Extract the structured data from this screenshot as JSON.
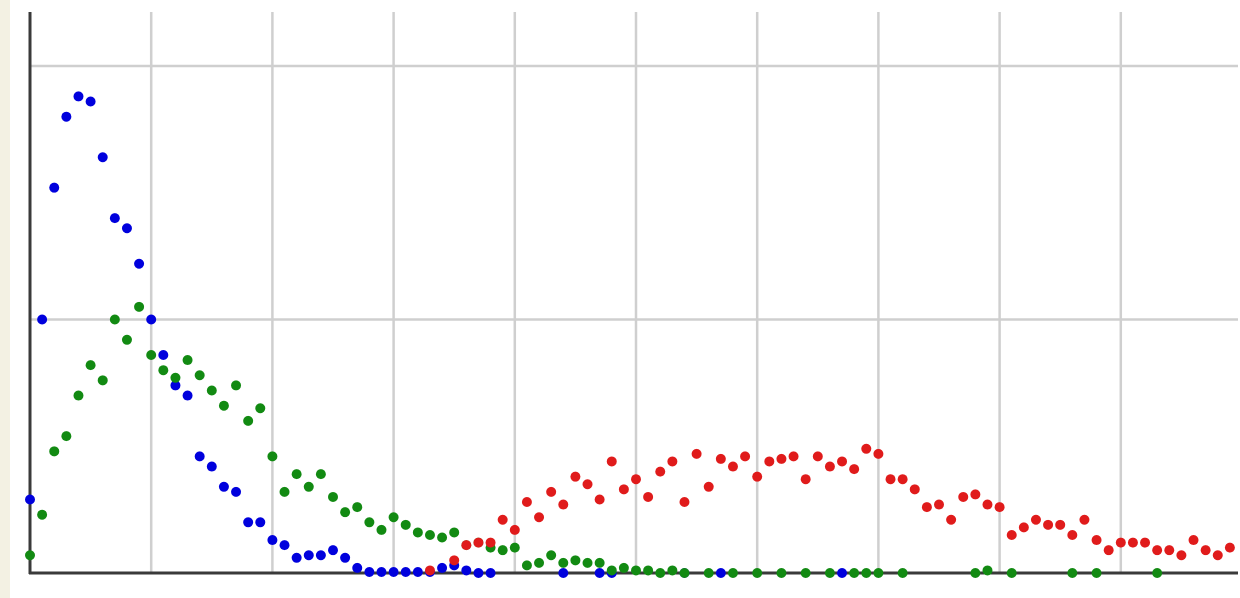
{
  "chart_data": {
    "type": "scatter",
    "title": "",
    "xlabel": "",
    "ylabel": "",
    "xlim": [
      0,
      100
    ],
    "ylim": [
      0,
      10
    ],
    "x_gridlines": [
      10,
      20,
      30,
      40,
      50,
      60,
      70,
      80,
      90
    ],
    "y_gridlines": [
      5,
      10
    ],
    "grid": true,
    "legend": "none",
    "series": [
      {
        "color": "#0000dd",
        "points": [
          [
            0,
            1.45
          ],
          [
            1,
            5.0
          ],
          [
            2,
            7.6
          ],
          [
            3,
            9.0
          ],
          [
            4,
            9.4
          ],
          [
            5,
            9.3
          ],
          [
            6,
            8.2
          ],
          [
            7,
            7.0
          ],
          [
            8,
            6.8
          ],
          [
            9,
            6.1
          ],
          [
            10,
            5.0
          ],
          [
            11,
            4.3
          ],
          [
            12,
            3.7
          ],
          [
            13,
            3.5
          ],
          [
            14,
            2.3
          ],
          [
            15,
            2.1
          ],
          [
            16,
            1.7
          ],
          [
            17,
            1.6
          ],
          [
            18,
            1.0
          ],
          [
            19,
            1.0
          ],
          [
            20,
            0.65
          ],
          [
            21,
            0.55
          ],
          [
            22,
            0.3
          ],
          [
            23,
            0.35
          ],
          [
            24,
            0.35
          ],
          [
            25,
            0.45
          ],
          [
            26,
            0.3
          ],
          [
            27,
            0.1
          ],
          [
            28,
            0.02
          ],
          [
            29,
            0.02
          ],
          [
            30,
            0.02
          ],
          [
            31,
            0.02
          ],
          [
            32,
            0.02
          ],
          [
            33,
            0.02
          ],
          [
            34,
            0.1
          ],
          [
            35,
            0.15
          ],
          [
            36,
            0.05
          ],
          [
            37,
            0.0
          ],
          [
            38,
            0.0
          ],
          [
            44,
            0.0
          ],
          [
            47,
            0.0
          ],
          [
            48,
            0.0
          ],
          [
            54,
            0.0
          ],
          [
            57,
            0.0
          ],
          [
            67,
            0.0
          ]
        ]
      },
      {
        "color": "#128a12",
        "points": [
          [
            0,
            0.35
          ],
          [
            1,
            1.15
          ],
          [
            2,
            2.4
          ],
          [
            3,
            2.7
          ],
          [
            4,
            3.5
          ],
          [
            5,
            4.1
          ],
          [
            6,
            3.8
          ],
          [
            7,
            5.0
          ],
          [
            8,
            4.6
          ],
          [
            9,
            5.25
          ],
          [
            10,
            4.3
          ],
          [
            11,
            4.0
          ],
          [
            12,
            3.85
          ],
          [
            13,
            4.2
          ],
          [
            14,
            3.9
          ],
          [
            15,
            3.6
          ],
          [
            16,
            3.3
          ],
          [
            17,
            3.7
          ],
          [
            18,
            3.0
          ],
          [
            19,
            3.25
          ],
          [
            20,
            2.3
          ],
          [
            21,
            1.6
          ],
          [
            22,
            1.95
          ],
          [
            23,
            1.7
          ],
          [
            24,
            1.95
          ],
          [
            25,
            1.5
          ],
          [
            26,
            1.2
          ],
          [
            27,
            1.3
          ],
          [
            28,
            1.0
          ],
          [
            29,
            0.85
          ],
          [
            30,
            1.1
          ],
          [
            31,
            0.95
          ],
          [
            32,
            0.8
          ],
          [
            33,
            0.75
          ],
          [
            34,
            0.7
          ],
          [
            35,
            0.8
          ],
          [
            36,
            0.55
          ],
          [
            37,
            0.6
          ],
          [
            38,
            0.5
          ],
          [
            39,
            0.45
          ],
          [
            40,
            0.5
          ],
          [
            41,
            0.15
          ],
          [
            42,
            0.2
          ],
          [
            43,
            0.35
          ],
          [
            44,
            0.2
          ],
          [
            45,
            0.25
          ],
          [
            46,
            0.2
          ],
          [
            47,
            0.2
          ],
          [
            48,
            0.05
          ],
          [
            49,
            0.1
          ],
          [
            50,
            0.05
          ],
          [
            51,
            0.05
          ],
          [
            52,
            0.0
          ],
          [
            53,
            0.05
          ],
          [
            54,
            0.0
          ],
          [
            56,
            0.0
          ],
          [
            58,
            0.0
          ],
          [
            60,
            0.0
          ],
          [
            62,
            0.0
          ],
          [
            64,
            0.0
          ],
          [
            66,
            0.0
          ],
          [
            68,
            0.0
          ],
          [
            69,
            0.0
          ],
          [
            70,
            0.0
          ],
          [
            72,
            0.0
          ],
          [
            78,
            0.0
          ],
          [
            79,
            0.05
          ],
          [
            81,
            0.0
          ],
          [
            86,
            0.0
          ],
          [
            88,
            0.0
          ],
          [
            93,
            0.0
          ]
        ]
      },
      {
        "color": "#e01b1b",
        "points": [
          [
            33,
            0.05
          ],
          [
            35,
            0.25
          ],
          [
            36,
            0.55
          ],
          [
            37,
            0.6
          ],
          [
            38,
            0.6
          ],
          [
            39,
            1.05
          ],
          [
            40,
            0.85
          ],
          [
            41,
            1.4
          ],
          [
            42,
            1.1
          ],
          [
            43,
            1.6
          ],
          [
            44,
            1.35
          ],
          [
            45,
            1.9
          ],
          [
            46,
            1.75
          ],
          [
            47,
            1.45
          ],
          [
            48,
            2.2
          ],
          [
            49,
            1.65
          ],
          [
            50,
            1.85
          ],
          [
            51,
            1.5
          ],
          [
            52,
            2.0
          ],
          [
            53,
            2.2
          ],
          [
            54,
            1.4
          ],
          [
            55,
            2.35
          ],
          [
            56,
            1.7
          ],
          [
            57,
            2.25
          ],
          [
            58,
            2.1
          ],
          [
            59,
            2.3
          ],
          [
            60,
            1.9
          ],
          [
            61,
            2.2
          ],
          [
            62,
            2.25
          ],
          [
            63,
            2.3
          ],
          [
            64,
            1.85
          ],
          [
            65,
            2.3
          ],
          [
            66,
            2.1
          ],
          [
            67,
            2.2
          ],
          [
            68,
            2.05
          ],
          [
            69,
            2.45
          ],
          [
            70,
            2.35
          ],
          [
            71,
            1.85
          ],
          [
            72,
            1.85
          ],
          [
            73,
            1.65
          ],
          [
            74,
            1.3
          ],
          [
            75,
            1.35
          ],
          [
            76,
            1.05
          ],
          [
            77,
            1.5
          ],
          [
            78,
            1.55
          ],
          [
            79,
            1.35
          ],
          [
            80,
            1.3
          ],
          [
            81,
            0.75
          ],
          [
            82,
            0.9
          ],
          [
            83,
            1.05
          ],
          [
            84,
            0.95
          ],
          [
            85,
            0.95
          ],
          [
            86,
            0.75
          ],
          [
            87,
            1.05
          ],
          [
            88,
            0.65
          ],
          [
            89,
            0.45
          ],
          [
            90,
            0.6
          ],
          [
            91,
            0.6
          ],
          [
            92,
            0.6
          ],
          [
            93,
            0.45
          ],
          [
            94,
            0.45
          ],
          [
            95,
            0.35
          ],
          [
            96,
            0.65
          ],
          [
            97,
            0.45
          ],
          [
            98,
            0.35
          ],
          [
            99,
            0.5
          ]
        ]
      }
    ]
  }
}
